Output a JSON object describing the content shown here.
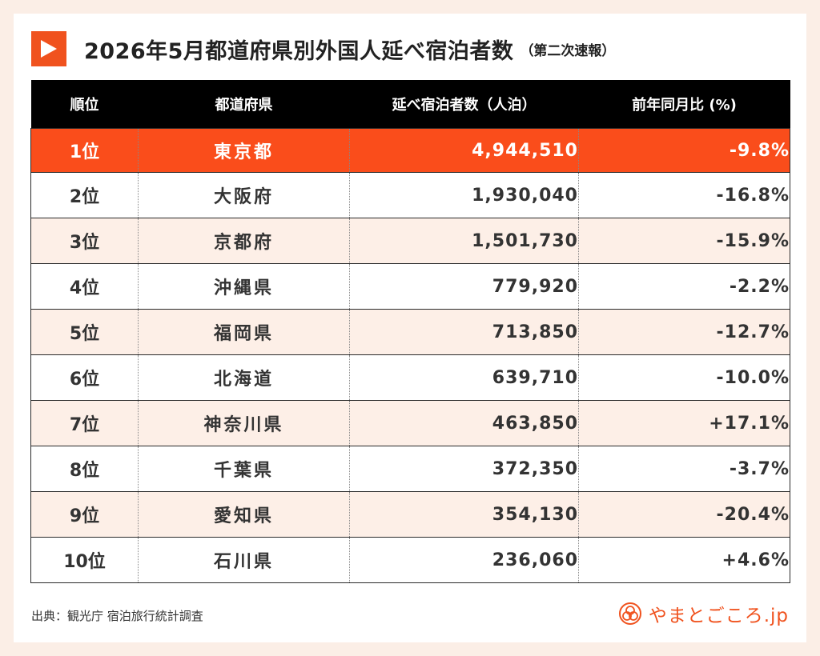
{
  "title": "2026年5月都道府県別外国人延べ宿泊者数",
  "subtitle": "（第二次速報）",
  "icons": {
    "title_marker": "play-icon",
    "brand_logo": "knot-logo-icon"
  },
  "colors": {
    "accent": "#f0521e",
    "top_row": "#fa4d1b",
    "stripe": "#fdefe7",
    "header": "#000000",
    "background": "#fbeee6"
  },
  "chart_data": {
    "type": "table",
    "columns": [
      "順位",
      "都道府県",
      "延べ宿泊者数（人泊）",
      "前年同月比 (%)"
    ],
    "rows": [
      {
        "rank": "1位",
        "prefecture": "東京都",
        "guests": "4,944,510",
        "yoy": "-9.8%"
      },
      {
        "rank": "2位",
        "prefecture": "大阪府",
        "guests": "1,930,040",
        "yoy": "-16.8%"
      },
      {
        "rank": "3位",
        "prefecture": "京都府",
        "guests": "1,501,730",
        "yoy": "-15.9%"
      },
      {
        "rank": "4位",
        "prefecture": "沖縄県",
        "guests": "779,920",
        "yoy": "-2.2%"
      },
      {
        "rank": "5位",
        "prefecture": "福岡県",
        "guests": "713,850",
        "yoy": "-12.7%"
      },
      {
        "rank": "6位",
        "prefecture": "北海道",
        "guests": "639,710",
        "yoy": "-10.0%"
      },
      {
        "rank": "7位",
        "prefecture": "神奈川県",
        "guests": "463,850",
        "yoy": "+17.1%"
      },
      {
        "rank": "8位",
        "prefecture": "千葉県",
        "guests": "372,350",
        "yoy": "-3.7%"
      },
      {
        "rank": "9位",
        "prefecture": "愛知県",
        "guests": "354,130",
        "yoy": "-20.4%"
      },
      {
        "rank": "10位",
        "prefecture": "石川県",
        "guests": "236,060",
        "yoy": "+4.6%"
      }
    ]
  },
  "footer": {
    "source": "出典：観光庁 宿泊旅行統計調査",
    "brand": "やまとごころ.jp"
  }
}
